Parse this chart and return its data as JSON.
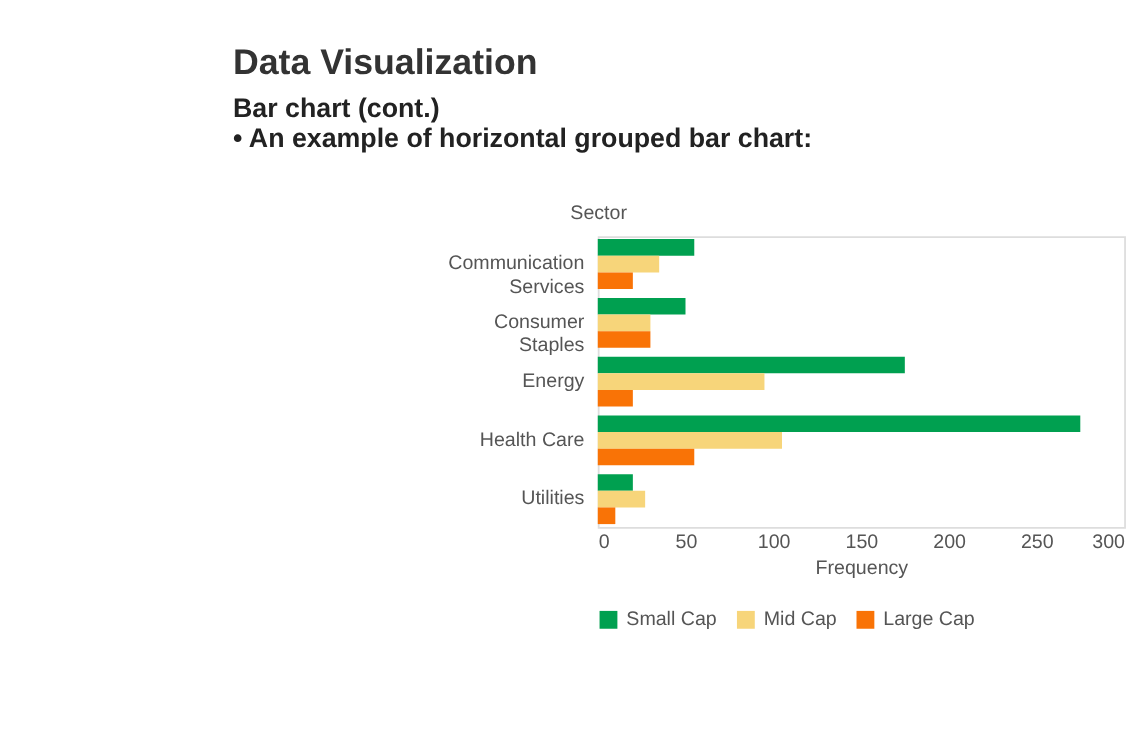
{
  "chart_data": {
    "type": "bar",
    "orientation": "horizontal",
    "title": "Data Visualization",
    "subtitle": "Bar chart (cont.)",
    "annotations": [
      "•  An example of horizontal grouped bar chart:"
    ],
    "ylabel": "Sector",
    "xlabel": "Frequency",
    "categories": [
      "Communication Services",
      "Consumer Staples",
      "Energy",
      "Health Care",
      "Utilities"
    ],
    "series": [
      {
        "name": "Small Cap",
        "color": "#00a050",
        "values": [
          55,
          50,
          175,
          275,
          20
        ]
      },
      {
        "name": "Mid Cap",
        "color": "#f7d57a",
        "values": [
          35,
          30,
          95,
          105,
          27
        ]
      },
      {
        "name": "Large Cap",
        "color": "#f97306",
        "values": [
          20,
          30,
          20,
          55,
          10
        ]
      }
    ],
    "xlim": [
      0,
      300
    ],
    "xticks": [
      0,
      50,
      100,
      150,
      200,
      250,
      300
    ],
    "grid": false,
    "legend": "bottom"
  }
}
